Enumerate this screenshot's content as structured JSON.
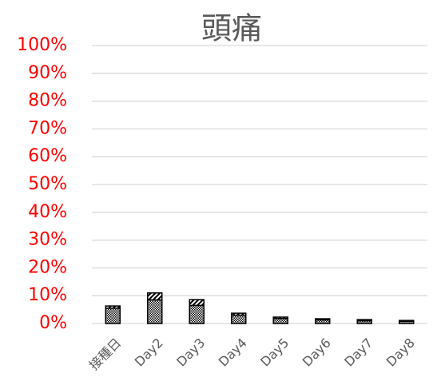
{
  "chart_data": {
    "type": "stacked_bar",
    "title": "頭痛",
    "categories": [
      "接種日",
      "Day2",
      "Day3",
      "Day4",
      "Day5",
      "Day6",
      "Day7",
      "Day8"
    ],
    "series": [
      {
        "color": "#000000",
        "pattern": "dots",
        "values": [
          5.5,
          8.5,
          6.5,
          3.0,
          1.8,
          1.3,
          1.0,
          0.8
        ]
      },
      {
        "color": "#000000",
        "pattern": "hatch",
        "values": [
          0.8,
          2.5,
          2.1,
          0.7,
          0.5,
          0.4,
          0.4,
          0.3
        ]
      }
    ],
    "ylim": [
      0,
      100
    ],
    "yticks": [
      {
        "value": 0,
        "label": "0%"
      },
      {
        "value": 10,
        "label": "10%"
      },
      {
        "value": 20,
        "label": "20%"
      },
      {
        "value": 30,
        "label": "30%"
      },
      {
        "value": 40,
        "label": "40%"
      },
      {
        "value": 50,
        "label": "50%"
      },
      {
        "value": 60,
        "label": "60%"
      },
      {
        "value": 70,
        "label": "70%"
      },
      {
        "value": 80,
        "label": "80%"
      },
      {
        "value": 90,
        "label": "90%"
      },
      {
        "value": 100,
        "label": "100%"
      }
    ],
    "ytick_color": "#ff0000",
    "grid": true
  }
}
